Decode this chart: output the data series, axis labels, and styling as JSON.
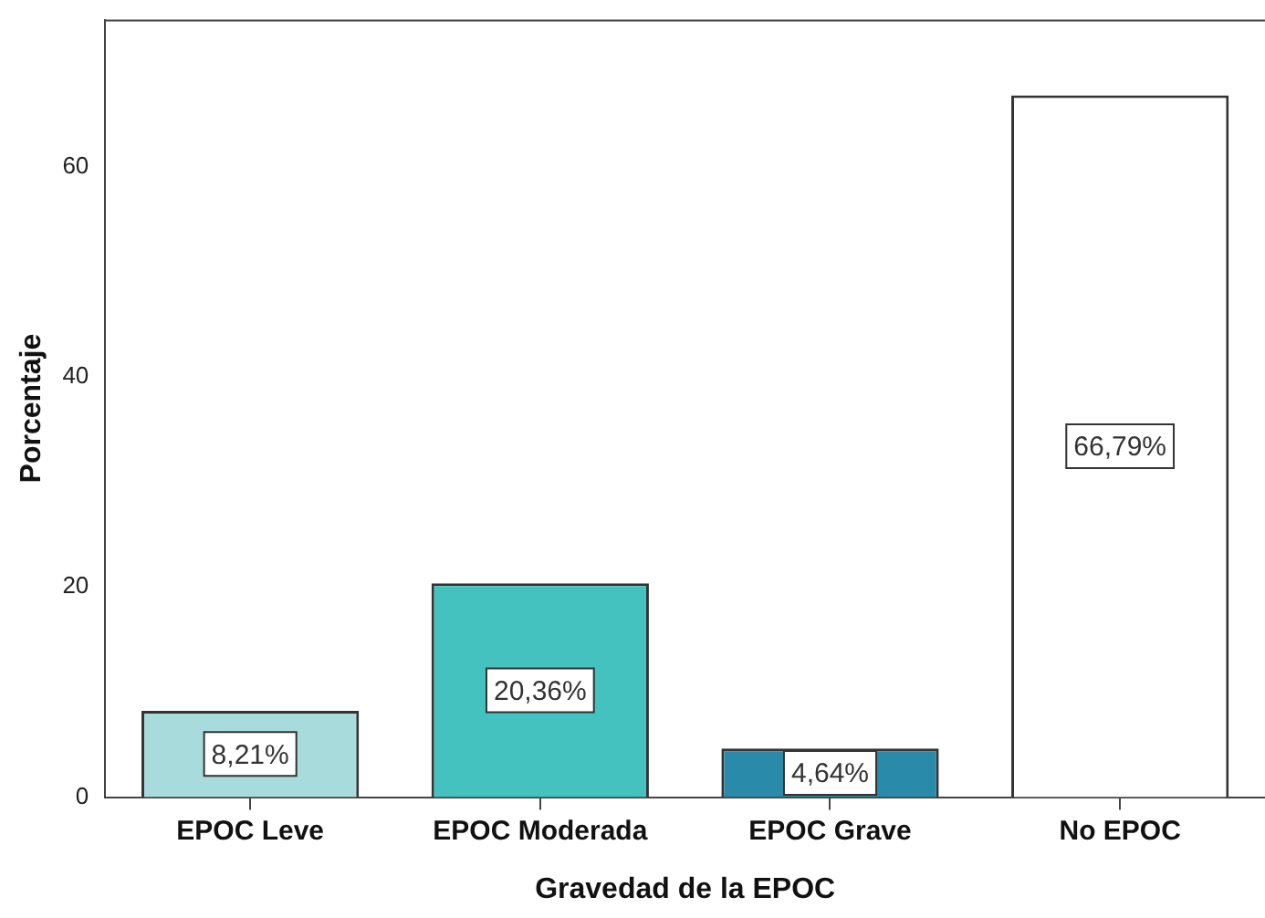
{
  "chart_data": {
    "type": "bar",
    "xlabel": "Gravedad de la EPOC",
    "ylabel": "Porcentaje",
    "categories": [
      "EPOC Leve",
      "EPOC Moderada",
      "EPOC Grave",
      "No EPOC"
    ],
    "values": [
      8.21,
      20.36,
      4.64,
      66.79
    ],
    "colors": [
      "#a8dcdc",
      "#44c2c0",
      "#2a8aaa",
      "#ffffff"
    ],
    "value_labels": [
      "8,21%",
      "20,36%",
      "4,64%",
      "66,79%"
    ],
    "ylim": [
      0,
      74
    ],
    "yticks": [
      0,
      20,
      40,
      60
    ],
    "grid": false,
    "legend": false
  }
}
